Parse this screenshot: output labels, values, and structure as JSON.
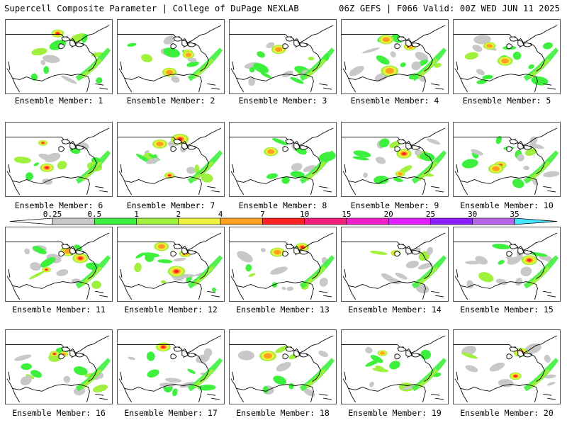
{
  "header": {
    "title_left": "Supercell Composite Parameter | College of DuPage NEXLAB",
    "title_right": "06Z GEFS | F066 Valid: 00Z WED JUN 11 2025"
  },
  "colorbar": {
    "ticks": [
      "0.25",
      "0.5",
      "1",
      "2",
      "4",
      "7",
      "10",
      "15",
      "20",
      "25",
      "30",
      "35"
    ],
    "colors": [
      "#c8c8c8",
      "#3ef03e",
      "#a0f03e",
      "#f0f03e",
      "#ffa020",
      "#ff2020",
      "#f01e78",
      "#f01ec8",
      "#e11eff",
      "#8c1eff",
      "#b464e6",
      "#46e6ff"
    ]
  },
  "panels": [
    {
      "label": "Ensemble Member: 1"
    },
    {
      "label": "Ensemble Member: 2"
    },
    {
      "label": "Ensemble Member: 3"
    },
    {
      "label": "Ensemble Member: 4"
    },
    {
      "label": "Ensemble Member: 5"
    },
    {
      "label": "Ensemble Member: 6"
    },
    {
      "label": "Ensemble Member: 7"
    },
    {
      "label": "Ensemble Member: 8"
    },
    {
      "label": "Ensemble Member: 9"
    },
    {
      "label": "Ensemble Member: 10"
    },
    {
      "label": "Ensemble Member: 11"
    },
    {
      "label": "Ensemble Member: 12"
    },
    {
      "label": "Ensemble Member: 13"
    },
    {
      "label": "Ensemble Member: 14"
    },
    {
      "label": "Ensemble Member: 15"
    },
    {
      "label": "Ensemble Member: 16"
    },
    {
      "label": "Ensemble Member: 17"
    },
    {
      "label": "Ensemble Member: 18"
    },
    {
      "label": "Ensemble Member: 19"
    },
    {
      "label": "Ensemble Member: 20"
    }
  ]
}
